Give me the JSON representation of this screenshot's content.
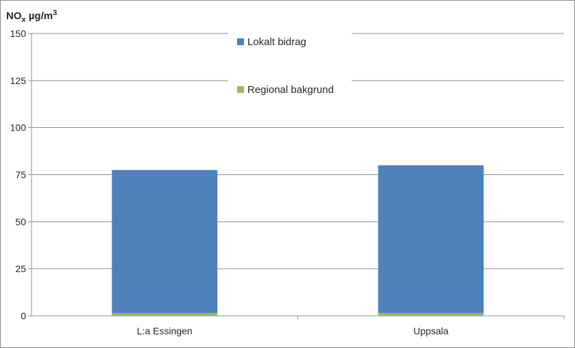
{
  "chart_data": {
    "type": "bar",
    "stacked": true,
    "ylabel": {
      "base": "NO",
      "sub": "x",
      "unit": " µg/m",
      "sup": "3"
    },
    "xlabel": "",
    "ylim": [
      0,
      150
    ],
    "yticks": [
      "0",
      "25",
      "50",
      "75",
      "100",
      "125",
      "150"
    ],
    "grid": true,
    "legend_position": "top-center",
    "categories": [
      "L:a Essingen",
      "Uppsala"
    ],
    "series": [
      {
        "name": "Regional bakgrund",
        "color": "#9bbb59",
        "values": [
          1.5,
          1.5
        ]
      },
      {
        "name": "Lokalt bidrag",
        "color": "#4f81bd",
        "values": [
          76,
          78.5
        ]
      }
    ],
    "legend_order": [
      "Lokalt bidrag",
      "Regional bakgrund"
    ]
  }
}
